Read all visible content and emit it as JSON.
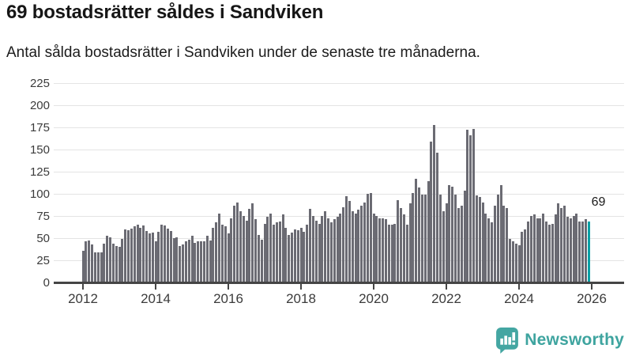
{
  "header": {
    "title": "69 bostadsrätter såldes i Sandviken",
    "subtitle": "Antal sålda bostadsrätter i Sandviken under de senaste tre månaderna."
  },
  "chart_data": {
    "type": "bar",
    "title": "69 bostadsrätter såldes i Sandviken",
    "xlabel": "",
    "ylabel": "",
    "x_start": "2012-01",
    "x_end": "2025-12",
    "x_ticks": [
      2012,
      2014,
      2016,
      2018,
      2020,
      2022,
      2024,
      2026
    ],
    "y_ticks": [
      0,
      25,
      50,
      75,
      100,
      125,
      150,
      175,
      200,
      225
    ],
    "ylim": [
      0,
      235
    ],
    "grid": true,
    "legend_position": "none",
    "bar_color": "#6b6b73",
    "highlight_color": "#0aa0a5",
    "highlight_index": 167,
    "annotation": {
      "text": "69",
      "value": 69,
      "month": "2025-12"
    },
    "values": [
      36,
      46,
      47,
      43,
      34,
      34,
      34,
      44,
      53,
      51,
      44,
      41,
      40,
      49,
      60,
      59,
      61,
      63,
      65,
      62,
      64,
      58,
      55,
      56,
      46,
      57,
      65,
      64,
      61,
      58,
      50,
      51,
      41,
      43,
      46,
      48,
      53,
      45,
      46,
      46,
      46,
      53,
      47,
      62,
      68,
      78,
      65,
      63,
      55,
      72,
      87,
      90,
      80,
      75,
      70,
      83,
      89,
      71,
      54,
      48,
      66,
      74,
      78,
      65,
      68,
      69,
      77,
      62,
      54,
      56,
      60,
      59,
      62,
      57,
      65,
      83,
      75,
      70,
      66,
      75,
      80,
      72,
      68,
      71,
      74,
      78,
      85,
      97,
      92,
      80,
      78,
      82,
      87,
      90,
      100,
      101,
      78,
      75,
      72,
      72,
      71,
      65,
      65,
      66,
      93,
      84,
      77,
      65,
      89,
      101,
      117,
      107,
      99,
      99,
      114,
      159,
      178,
      146,
      99,
      80,
      89,
      110,
      108,
      99,
      84,
      87,
      104,
      172,
      166,
      173,
      98,
      96,
      90,
      78,
      72,
      68,
      87,
      99,
      110,
      87,
      84,
      49,
      46,
      44,
      42,
      57,
      60,
      69,
      75,
      77,
      72,
      72,
      78,
      69,
      65,
      66,
      77,
      89,
      84,
      87,
      74,
      72,
      75,
      78,
      69,
      69,
      71,
      69
    ]
  },
  "footer": {
    "brand": "Newsworthy",
    "brand_color": "#3ea49f",
    "logo_icon": "newsworthy-speech-bubble-bar-chart-icon"
  }
}
